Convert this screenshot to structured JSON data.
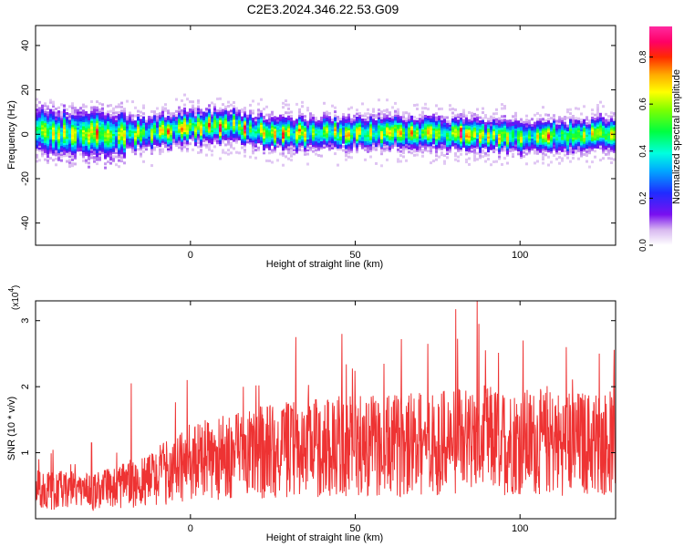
{
  "title": "C2E3.2024.346.22.53.G09",
  "chart_data": [
    {
      "type": "heatmap",
      "xlabel": "Height of straight line (km)",
      "ylabel": "Frequency (Hz)",
      "xlim": [
        -47,
        129
      ],
      "ylim": [
        -50,
        49
      ],
      "xticks": [
        0,
        50,
        100
      ],
      "yticks": [
        -40,
        -20,
        0,
        20,
        40
      ],
      "colorbar": {
        "label": "Normalized spectral amplitude",
        "range": [
          0,
          0.93
        ],
        "ticks": [
          0.0,
          0.2,
          0.4,
          0.6,
          0.8
        ]
      },
      "ridge": {
        "x": [
          -47,
          -30,
          -15,
          0,
          10,
          20,
          40,
          60,
          80,
          100,
          115,
          129
        ],
        "y": [
          2,
          1,
          1,
          4,
          5,
          2,
          1,
          2,
          1,
          0,
          0,
          1
        ]
      }
    },
    {
      "type": "line",
      "xlabel": "Height of straight line (km)",
      "ylabel": "SNR (10 * v/v)",
      "y_scale_note": "(x10",
      "y_scale_exp": "4",
      "xlim": [
        -47,
        129
      ],
      "ylim": [
        0,
        3.3
      ],
      "xticks": [
        0,
        50,
        100
      ],
      "yticks": [
        1,
        2,
        3
      ],
      "color": "#ee3333",
      "envelope": {
        "x": [
          -47,
          -30,
          -20,
          -10,
          0,
          20,
          40,
          60,
          88,
          110,
          129
        ],
        "y": [
          0.45,
          0.4,
          0.5,
          0.65,
          0.85,
          1.0,
          1.1,
          1.1,
          1.2,
          1.15,
          1.15
        ]
      },
      "peaks": [
        {
          "x": -46,
          "y": 0.9
        },
        {
          "x": -30,
          "y": 1.15
        },
        {
          "x": -18,
          "y": 2.05
        },
        {
          "x": -1,
          "y": 2.1
        },
        {
          "x": 16,
          "y": 2.0
        },
        {
          "x": 32,
          "y": 2.75
        },
        {
          "x": 46,
          "y": 2.8
        },
        {
          "x": 64,
          "y": 2.72
        },
        {
          "x": 72,
          "y": 2.65
        },
        {
          "x": 87,
          "y": 3.3
        },
        {
          "x": 101,
          "y": 2.7
        },
        {
          "x": 114,
          "y": 2.6
        },
        {
          "x": 124,
          "y": 2.5
        }
      ]
    }
  ]
}
